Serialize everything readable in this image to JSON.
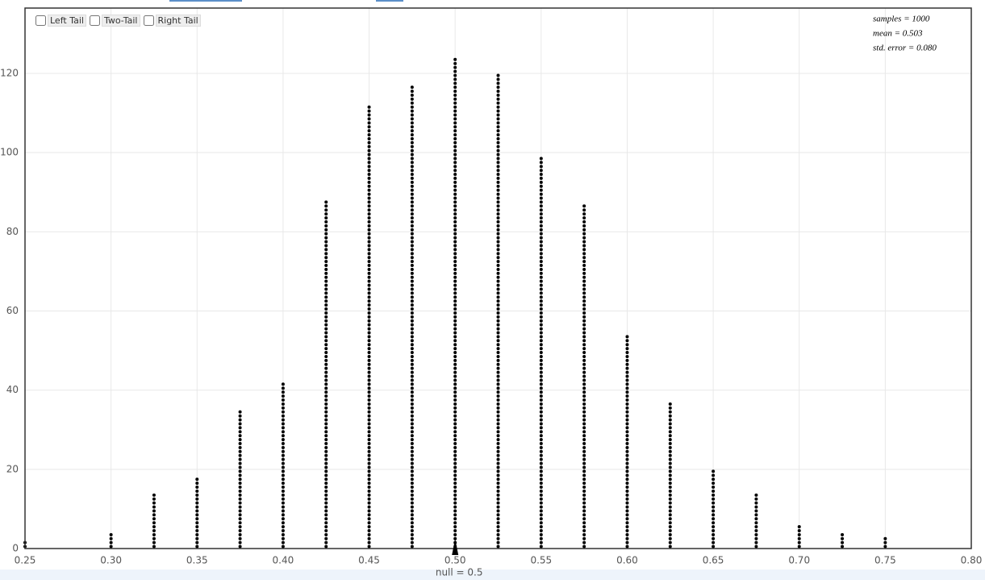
{
  "chart_data": {
    "type": "dotplot",
    "x": [
      0.25,
      0.3,
      0.325,
      0.35,
      0.375,
      0.4,
      0.425,
      0.45,
      0.475,
      0.5,
      0.525,
      0.55,
      0.575,
      0.6,
      0.625,
      0.65,
      0.675,
      0.7,
      0.725,
      0.75
    ],
    "values": [
      2,
      4,
      14,
      18,
      35,
      42,
      88,
      112,
      117,
      124,
      120,
      99,
      87,
      54,
      37,
      20,
      14,
      6,
      4,
      3
    ],
    "color": "#000000",
    "xlim": [
      0.25,
      0.8
    ],
    "xticks": [
      0.25,
      {
        "value": 0.3,
        "label": "0.30"
      },
      0.35,
      {
        "value": 0.4,
        "label": "0.40"
      },
      0.45,
      {
        "value": 0.5,
        "label": "0.50"
      },
      0.55,
      {
        "value": 0.6,
        "label": "0.60"
      },
      0.65,
      {
        "value": 0.7,
        "label": "0.70"
      },
      0.75,
      {
        "value": 0.8,
        "label": "0.80"
      }
    ],
    "ylim": [
      0,
      136.5
    ],
    "yticks": [
      0,
      20,
      40,
      60,
      80,
      100,
      120
    ],
    "grid": true,
    "null_value": 0.5,
    "null_label": "null = 0.5",
    "stats": [
      "samples = 1000",
      "mean = 0.503",
      "std. error = 0.080"
    ],
    "tail_options": [
      "Left Tail",
      "Two-Tail",
      "Right Tail"
    ]
  }
}
